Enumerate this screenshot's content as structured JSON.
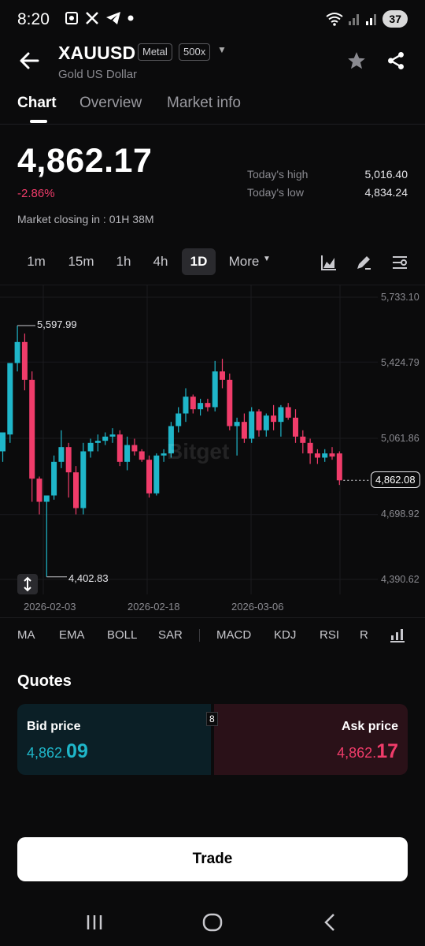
{
  "status_bar": {
    "time": "8:20",
    "battery": "37"
  },
  "header": {
    "symbol": "XAUUSD",
    "badge_type": "Metal",
    "badge_leverage": "500x",
    "subtitle": "Gold US Dollar"
  },
  "tabs": [
    "Chart",
    "Overview",
    "Market info"
  ],
  "price": {
    "last": "4,862.17",
    "change": "-2.86%",
    "closing": "Market closing in : 01H 38M",
    "high_label": "Today's high",
    "high_value": "5,016.40",
    "low_label": "Today's low",
    "low_value": "4,834.24"
  },
  "timeframes": [
    "1m",
    "15m",
    "1h",
    "4h",
    "1D",
    "More"
  ],
  "chart": {
    "y_labels": [
      "5,733.10",
      "5,424.79",
      "5,061.86",
      "4,698.92",
      "4,390.62"
    ],
    "x_labels": [
      "2026-02-03",
      "2026-02-18",
      "2026-03-06"
    ],
    "high_annotation": "5,597.99",
    "low_annotation": "4,402.83",
    "current_tag": "4,862.08",
    "watermark": "Bitget"
  },
  "chart_data": {
    "type": "candlestick",
    "y_axis_ticks": [
      5733.1,
      5424.79,
      5061.86,
      4698.92,
      4390.62
    ],
    "candles": [
      {
        "o": 5000,
        "h": 5090,
        "l": 4950,
        "c": 5090
      },
      {
        "o": 5080,
        "h": 5420,
        "l": 5040,
        "c": 5420
      },
      {
        "o": 5420,
        "h": 5598,
        "l": 5380,
        "c": 5520
      },
      {
        "o": 5520,
        "h": 5560,
        "l": 5290,
        "c": 5340
      },
      {
        "o": 5340,
        "h": 5380,
        "l": 4760,
        "c": 4870
      },
      {
        "o": 4870,
        "h": 4880,
        "l": 4700,
        "c": 4760
      },
      {
        "o": 4760,
        "h": 4790,
        "l": 4403,
        "c": 4790
      },
      {
        "o": 4790,
        "h": 4980,
        "l": 4770,
        "c": 4950
      },
      {
        "o": 4950,
        "h": 5100,
        "l": 4920,
        "c": 5020
      },
      {
        "o": 5020,
        "h": 5040,
        "l": 4780,
        "c": 4900
      },
      {
        "o": 4900,
        "h": 4930,
        "l": 4700,
        "c": 4730
      },
      {
        "o": 4730,
        "h": 5040,
        "l": 4700,
        "c": 5000
      },
      {
        "o": 5000,
        "h": 5060,
        "l": 4970,
        "c": 5040
      },
      {
        "o": 5040,
        "h": 5080,
        "l": 5000,
        "c": 5050
      },
      {
        "o": 5050,
        "h": 5090,
        "l": 5030,
        "c": 5070
      },
      {
        "o": 5070,
        "h": 5110,
        "l": 5040,
        "c": 5080
      },
      {
        "o": 5080,
        "h": 5100,
        "l": 4930,
        "c": 4950
      },
      {
        "o": 4950,
        "h": 5070,
        "l": 4910,
        "c": 5030
      },
      {
        "o": 5030,
        "h": 5060,
        "l": 4980,
        "c": 5000
      },
      {
        "o": 5000,
        "h": 5010,
        "l": 4950,
        "c": 4960
      },
      {
        "o": 4960,
        "h": 4980,
        "l": 4780,
        "c": 4800
      },
      {
        "o": 4800,
        "h": 4990,
        "l": 4790,
        "c": 4980
      },
      {
        "o": 4980,
        "h": 5010,
        "l": 4950,
        "c": 4990
      },
      {
        "o": 4990,
        "h": 5140,
        "l": 4970,
        "c": 5120
      },
      {
        "o": 5120,
        "h": 5210,
        "l": 5090,
        "c": 5180
      },
      {
        "o": 5180,
        "h": 5300,
        "l": 5140,
        "c": 5260
      },
      {
        "o": 5260,
        "h": 5270,
        "l": 5180,
        "c": 5200
      },
      {
        "o": 5200,
        "h": 5250,
        "l": 5170,
        "c": 5230
      },
      {
        "o": 5230,
        "h": 5250,
        "l": 5190,
        "c": 5210
      },
      {
        "o": 5210,
        "h": 5430,
        "l": 5190,
        "c": 5380
      },
      {
        "o": 5380,
        "h": 5440,
        "l": 5300,
        "c": 5340
      },
      {
        "o": 5340,
        "h": 5370,
        "l": 5100,
        "c": 5120
      },
      {
        "o": 5120,
        "h": 5160,
        "l": 4980,
        "c": 5140
      },
      {
        "o": 5140,
        "h": 5180,
        "l": 5040,
        "c": 5060
      },
      {
        "o": 5060,
        "h": 5210,
        "l": 5040,
        "c": 5190
      },
      {
        "o": 5190,
        "h": 5200,
        "l": 5070,
        "c": 5100
      },
      {
        "o": 5100,
        "h": 5180,
        "l": 5070,
        "c": 5170
      },
      {
        "o": 5170,
        "h": 5220,
        "l": 5100,
        "c": 5140
      },
      {
        "o": 5140,
        "h": 5220,
        "l": 5070,
        "c": 5210
      },
      {
        "o": 5210,
        "h": 5230,
        "l": 5150,
        "c": 5160
      },
      {
        "o": 5160,
        "h": 5200,
        "l": 5040,
        "c": 5070
      },
      {
        "o": 5070,
        "h": 5100,
        "l": 4990,
        "c": 5040
      },
      {
        "o": 5040,
        "h": 5060,
        "l": 4940,
        "c": 4990
      },
      {
        "o": 4990,
        "h": 5010,
        "l": 4940,
        "c": 4970
      },
      {
        "o": 4970,
        "h": 5010,
        "l": 4950,
        "c": 4990
      },
      {
        "o": 4990,
        "h": 5020,
        "l": 4960,
        "c": 4975
      },
      {
        "o": 4990,
        "h": 5000,
        "l": 4840,
        "c": 4862
      }
    ]
  },
  "indicators": [
    "MA",
    "EMA",
    "BOLL",
    "SAR",
    "MACD",
    "KDJ",
    "RSI",
    "R"
  ],
  "quotes": {
    "title": "Quotes",
    "bid_label": "Bid price",
    "bid_int": "4,862.",
    "bid_dec": "09",
    "ask_label": "Ask price",
    "ask_int": "4,862.",
    "ask_dec": "17",
    "spread": "8"
  },
  "trade_label": "Trade",
  "colors": {
    "up": "#1fb6c9",
    "down": "#f03c6a",
    "bg": "#0b0b0c"
  }
}
